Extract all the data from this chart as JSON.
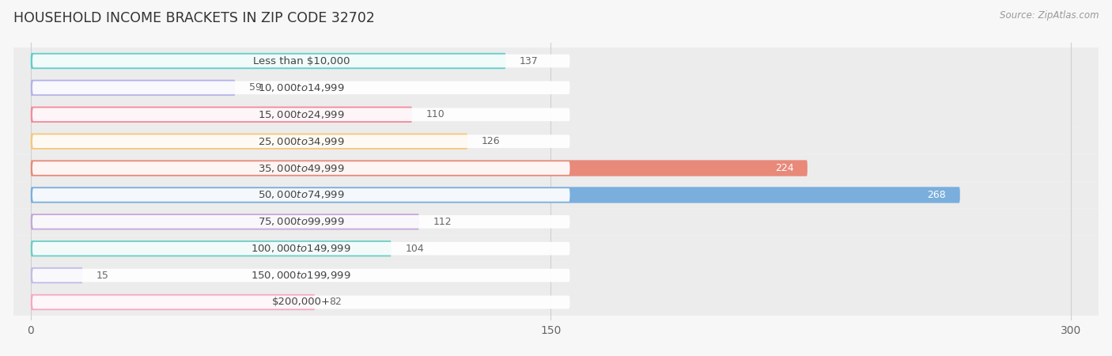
{
  "title": "HOUSEHOLD INCOME BRACKETS IN ZIP CODE 32702",
  "source": "Source: ZipAtlas.com",
  "categories": [
    "Less than $10,000",
    "$10,000 to $14,999",
    "$15,000 to $24,999",
    "$25,000 to $34,999",
    "$35,000 to $49,999",
    "$50,000 to $74,999",
    "$75,000 to $99,999",
    "$100,000 to $149,999",
    "$150,000 to $199,999",
    "$200,000+"
  ],
  "values": [
    137,
    59,
    110,
    126,
    224,
    268,
    112,
    104,
    15,
    82
  ],
  "bar_colors": [
    "#5ecfca",
    "#b3b3e8",
    "#f28a9e",
    "#f5c878",
    "#e8897a",
    "#7aaedd",
    "#c4a8d8",
    "#6ecfc4",
    "#c0bce8",
    "#f8a8c0"
  ],
  "row_bg_color": "#ececec",
  "xlim_min": -5,
  "xlim_max": 308,
  "xticks": [
    0,
    150,
    300
  ],
  "background_color": "#f7f7f7",
  "title_fontsize": 12.5,
  "label_fontsize": 9.5,
  "value_fontsize": 9,
  "white_label_threshold": 200
}
